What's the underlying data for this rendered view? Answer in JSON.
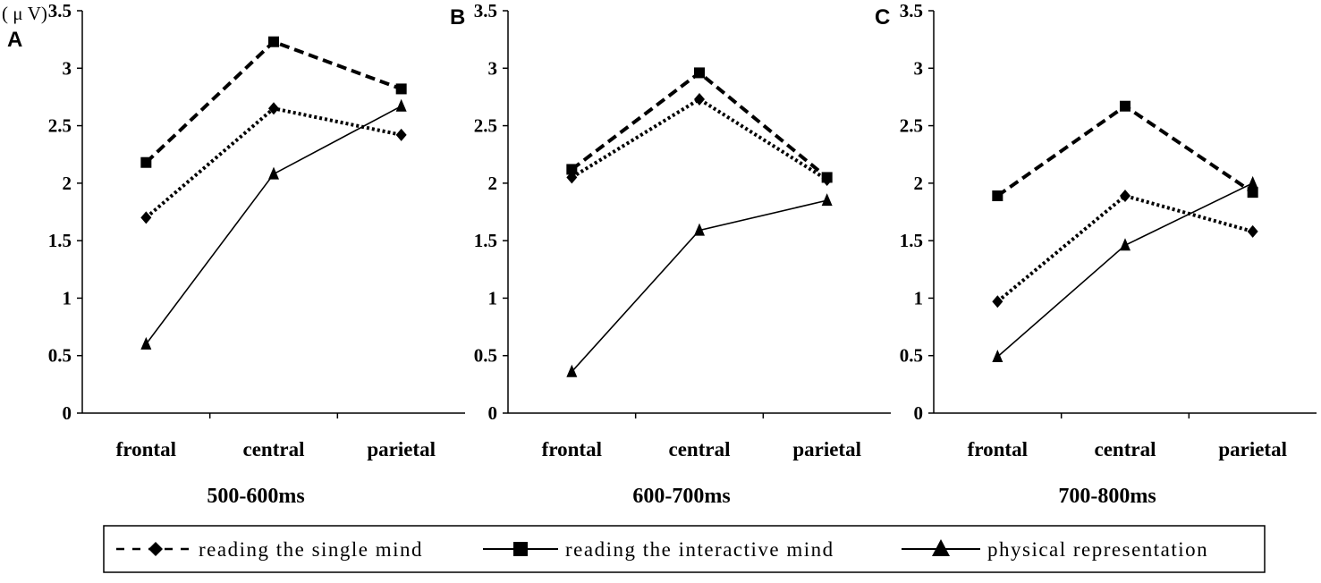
{
  "figure": {
    "unit_label": "( μ V)",
    "legend": [
      {
        "label": "reading the single mind",
        "style": "dashed",
        "marker": "diamond"
      },
      {
        "label": "reading the interactive mind",
        "style": "long-dashed",
        "marker": "square"
      },
      {
        "label": "physical representation",
        "style": "solid",
        "marker": "triangle"
      }
    ]
  },
  "chart_data": [
    {
      "type": "line",
      "panel_label": "A",
      "title": "500-600ms",
      "categories": [
        "frontal",
        "central",
        "parietal"
      ],
      "ylim": [
        0,
        3.5
      ],
      "yticks": [
        "0",
        "0.5",
        "1",
        "1.5",
        "2",
        "2.5",
        "3",
        "3.5"
      ],
      "series": [
        {
          "name": "reading the single mind",
          "values": [
            1.7,
            2.65,
            2.42
          ]
        },
        {
          "name": "reading the interactive mind",
          "values": [
            2.18,
            3.23,
            2.82
          ]
        },
        {
          "name": "physical representation",
          "values": [
            0.6,
            2.08,
            2.67
          ]
        }
      ]
    },
    {
      "type": "line",
      "panel_label": "B",
      "title": "600-700ms",
      "categories": [
        "frontal",
        "central",
        "parietal"
      ],
      "ylim": [
        0,
        3.5
      ],
      "yticks": [
        "0",
        "0.5",
        "1",
        "1.5",
        "2",
        "2.5",
        "3",
        "3.5"
      ],
      "series": [
        {
          "name": "reading the single mind",
          "values": [
            2.05,
            2.73,
            2.03
          ]
        },
        {
          "name": "reading the interactive mind",
          "values": [
            2.12,
            2.96,
            2.05
          ]
        },
        {
          "name": "physical representation",
          "values": [
            0.36,
            1.59,
            1.85
          ]
        }
      ]
    },
    {
      "type": "line",
      "panel_label": "C",
      "title": "700-800ms",
      "categories": [
        "frontal",
        "central",
        "parietal"
      ],
      "ylim": [
        0,
        3.5
      ],
      "yticks": [
        "0",
        "0.5",
        "1",
        "1.5",
        "2",
        "2.5",
        "3",
        "3.5"
      ],
      "series": [
        {
          "name": "reading the single mind",
          "values": [
            0.97,
            1.89,
            1.58
          ]
        },
        {
          "name": "reading the interactive mind",
          "values": [
            1.89,
            2.67,
            1.92
          ]
        },
        {
          "name": "physical representation",
          "values": [
            0.49,
            1.46,
            2.0
          ]
        }
      ]
    }
  ]
}
